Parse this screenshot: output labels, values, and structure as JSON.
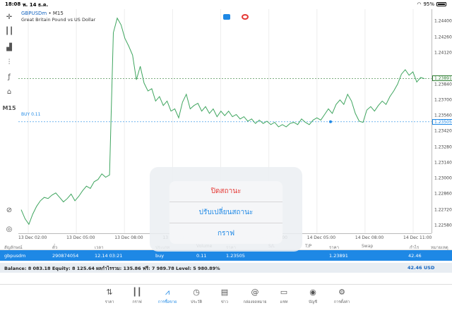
{
  "status": {
    "time": "18:08",
    "date": "พ. 14 ธ.ค.",
    "battery": "95%"
  },
  "toolbar": {
    "timeframe": "M15"
  },
  "chart": {
    "symbol": "GBPUSDm",
    "separator": " • ",
    "period": "M15",
    "description": "Great Britain Pound vs US Dollar",
    "buy_label": "BUY 0.11",
    "current_price": "1.23891",
    "open_price_tag": "1.23505",
    "colors": {
      "line": "#3fa55f",
      "buy_line": "#1e88e5",
      "current_line": "#2e7d32"
    }
  },
  "chart_data": {
    "type": "line",
    "ylim": [
      1.2251,
      1.2451
    ],
    "y_ticks": [
      "1.24400",
      "1.24260",
      "1.24120",
      "1.23840",
      "1.23700",
      "1.23560",
      "1.23420",
      "1.23280",
      "1.23140",
      "1.23000",
      "1.22860",
      "1.22720",
      "1.22580"
    ],
    "x_ticks": [
      "13 Dec 02:00",
      "13 Dec 05:00",
      "13 Dec 08:00",
      "13 Dec 11:00",
      "13 Dec 23:00",
      "14 Dec 02:00",
      "14 Dec 05:00",
      "14 Dec 08:00",
      "14 Dec 11:00"
    ],
    "series": [
      {
        "values": [
          1.2272,
          1.2264,
          1.2259,
          1.2268,
          1.2275,
          1.228,
          1.2283,
          1.2282,
          1.2285,
          1.2287,
          1.2283,
          1.2279,
          1.2282,
          1.2286,
          1.228,
          1.2284,
          1.2289,
          1.2293,
          1.2291,
          1.2297,
          1.2299,
          1.2304,
          1.2301,
          1.2303,
          1.243,
          1.2443,
          1.2437,
          1.2425,
          1.2418,
          1.241,
          1.2388,
          1.24,
          1.2385,
          1.2378,
          1.238,
          1.2369,
          1.2373,
          1.2365,
          1.2369,
          1.236,
          1.2362,
          1.2354,
          1.2368,
          1.2375,
          1.2362,
          1.2365,
          1.2367,
          1.236,
          1.2364,
          1.2358,
          1.2362,
          1.2355,
          1.236,
          1.2356,
          1.236,
          1.2355,
          1.2357,
          1.2353,
          1.2355,
          1.2351,
          1.2353,
          1.2349,
          1.2352,
          1.2349,
          1.2351,
          1.2348,
          1.235,
          1.2346,
          1.2348,
          1.2346,
          1.2349,
          1.235,
          1.2348,
          1.2353,
          1.235,
          1.2348,
          1.2352,
          1.2354,
          1.2352,
          1.2357,
          1.2362,
          1.2358,
          1.2366,
          1.237,
          1.2366,
          1.2375,
          1.2369,
          1.2358,
          1.2351,
          1.235,
          1.2361,
          1.2364,
          1.236,
          1.2365,
          1.2369,
          1.2366,
          1.2373,
          1.2378,
          1.2384,
          1.2393,
          1.2397,
          1.2392,
          1.2395,
          1.2386,
          1.239,
          1.2389
        ]
      }
    ]
  },
  "table": {
    "headers": [
      "สัญลักษณ์",
      "ตั๋ว",
      "เวลา",
      "ประเภท",
      "Volume",
      "ราคา",
      "S/L",
      "T/P",
      "ราคา",
      "Swap",
      "กำไร",
      "หมายเหตุ"
    ],
    "row": {
      "symbol": "gbpusdm",
      "ticket": "290874054",
      "time": "12.14 03:21",
      "type": "buy",
      "volume": "0.11",
      "open_price": "1.23505",
      "current_price": "1.23891",
      "profit": "42.46"
    },
    "balance_text": "Balance: 8 083.18 Equity: 8 125.64 ผลกำไรรวม: 135.86 ฟรี: 7 989.78 Level: 5 980.89%",
    "total_profit": "42.46",
    "currency": "USD"
  },
  "action_sheet": {
    "items": [
      {
        "label": "ปิดสถานะ",
        "color": "red"
      },
      {
        "label": "ปรับเปลี่ยนสถานะ",
        "color": "blue"
      },
      {
        "label": "กราฟ",
        "color": "blue"
      }
    ]
  },
  "tabs": [
    {
      "label": "ราคา",
      "icon": "sort-arrows-icon"
    },
    {
      "label": "กราฟ",
      "icon": "candlestick-icon"
    },
    {
      "label": "การซื้อขาย",
      "icon": "trade-chart-icon",
      "active": true
    },
    {
      "label": "ประวัติ",
      "icon": "history-clock-icon"
    },
    {
      "label": "ข่าว",
      "icon": "news-icon"
    },
    {
      "label": "กล่องจดหมาย",
      "icon": "mailbox-at-icon"
    },
    {
      "label": "แชท",
      "icon": "chat-icon"
    },
    {
      "label": "บัญชี",
      "icon": "account-icon"
    },
    {
      "label": "การตั้งค่า",
      "icon": "settings-gear-icon"
    }
  ]
}
